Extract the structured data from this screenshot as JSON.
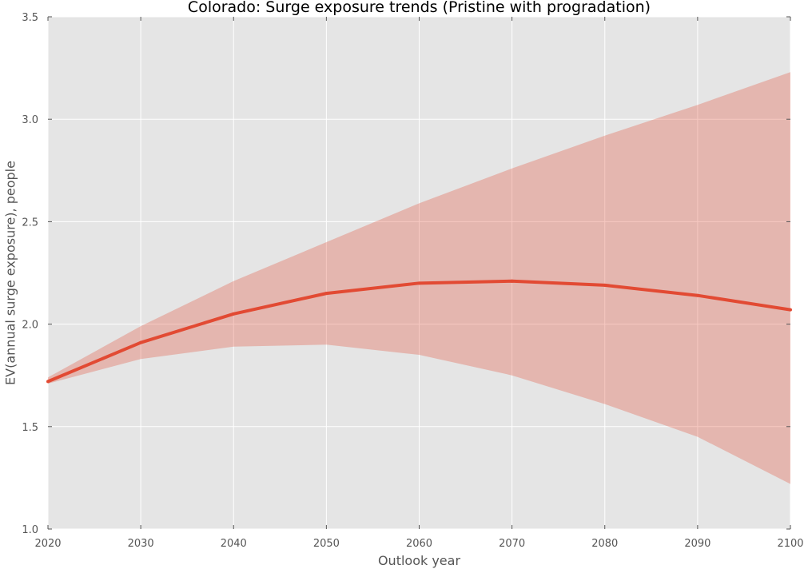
{
  "chart_data": {
    "type": "line",
    "title": "Colorado: Surge exposure trends (Pristine with progradation)",
    "xlabel": "Outlook year",
    "ylabel": "EV(annual surge exposure), people",
    "xlim": [
      2020,
      2100
    ],
    "ylim": [
      1.0,
      3.5
    ],
    "x_ticks": [
      "2020",
      "2030",
      "2040",
      "2050",
      "2060",
      "2070",
      "2080",
      "2090",
      "2100"
    ],
    "y_ticks": [
      "1.0",
      "1.5",
      "2.0",
      "2.5",
      "3.0",
      "3.5"
    ],
    "grid": true,
    "x": [
      2020,
      2030,
      2040,
      2050,
      2060,
      2070,
      2080,
      2090,
      2100
    ],
    "series": [
      {
        "values": [
          1.72,
          1.91,
          2.05,
          2.15,
          2.2,
          2.21,
          2.19,
          2.14,
          2.07
        ],
        "lower": [
          1.71,
          1.83,
          1.89,
          1.9,
          1.85,
          1.75,
          1.61,
          1.45,
          1.22
        ],
        "upper": [
          1.74,
          1.99,
          2.21,
          2.4,
          2.59,
          2.76,
          2.92,
          3.07,
          3.23
        ]
      }
    ],
    "colors": {
      "line": "#e24a33",
      "band": "#e24a33",
      "plot_background": "#e5e5e5",
      "grid": "#ffffff"
    }
  }
}
